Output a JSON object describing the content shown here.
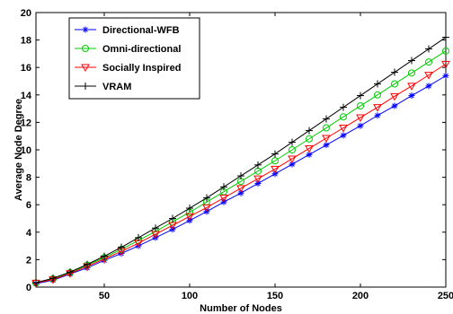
{
  "chart_data": {
    "type": "line",
    "title": "",
    "xlabel": "Number of Nodes",
    "ylabel": "Average Node Degree",
    "xlim": [
      10,
      250
    ],
    "ylim": [
      0,
      20
    ],
    "xticks": [
      50,
      100,
      150,
      200,
      250
    ],
    "yticks": [
      0,
      2,
      4,
      6,
      8,
      10,
      12,
      14,
      16,
      18,
      20
    ],
    "grid": false,
    "legend_position": "top-left",
    "x": [
      10,
      20,
      30,
      40,
      50,
      60,
      70,
      80,
      90,
      100,
      110,
      120,
      130,
      140,
      150,
      160,
      170,
      180,
      190,
      200,
      210,
      220,
      230,
      240,
      250
    ],
    "series": [
      {
        "name": "Directional-WFB",
        "color": "#0000ff",
        "marker": "asterisk",
        "values": [
          0.25,
          0.5,
          0.95,
          1.4,
          1.95,
          2.45,
          3.0,
          3.6,
          4.2,
          4.85,
          5.5,
          6.2,
          6.85,
          7.55,
          8.25,
          8.95,
          9.65,
          10.35,
          11.05,
          11.75,
          12.5,
          13.2,
          13.95,
          14.65,
          15.4
        ]
      },
      {
        "name": "Omni-directional",
        "color": "#00cc00",
        "marker": "circle",
        "values": [
          0.3,
          0.6,
          1.05,
          1.6,
          2.15,
          2.75,
          3.4,
          4.05,
          4.75,
          5.45,
          6.2,
          6.95,
          7.7,
          8.45,
          9.2,
          10.0,
          10.8,
          11.6,
          12.4,
          13.2,
          14.0,
          14.8,
          15.6,
          16.4,
          17.2
        ]
      },
      {
        "name": "Socially Inspired",
        "color": "#ff0000",
        "marker": "triangle-down",
        "values": [
          0.3,
          0.55,
          1.0,
          1.5,
          2.05,
          2.6,
          3.2,
          3.85,
          4.5,
          5.15,
          5.8,
          6.5,
          7.2,
          7.9,
          8.6,
          9.35,
          10.1,
          10.85,
          11.6,
          12.35,
          13.1,
          13.9,
          14.65,
          15.45,
          16.25
        ]
      },
      {
        "name": "VRAM",
        "color": "#000000",
        "marker": "plus",
        "values": [
          0.32,
          0.65,
          1.1,
          1.65,
          2.25,
          2.9,
          3.6,
          4.3,
          5.0,
          5.75,
          6.5,
          7.3,
          8.1,
          8.9,
          9.7,
          10.55,
          11.4,
          12.25,
          13.1,
          13.95,
          14.8,
          15.65,
          16.5,
          17.35,
          18.2
        ]
      }
    ]
  }
}
